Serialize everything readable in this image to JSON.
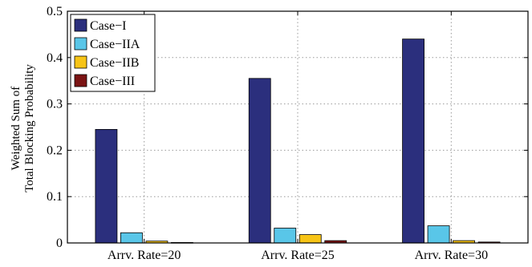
{
  "chart_data": {
    "type": "bar",
    "categories": [
      "Arrv. Rate=20",
      "Arrv. Rate=25",
      "Arrv. Rate=30"
    ],
    "series": [
      {
        "name": "Case−I",
        "color": "#2b2f7d",
        "values": [
          0.245,
          0.355,
          0.44
        ]
      },
      {
        "name": "Case−IIA",
        "color": "#59c6e8",
        "values": [
          0.022,
          0.032,
          0.037
        ]
      },
      {
        "name": "Case−IIB",
        "color": "#f7c416",
        "values": [
          0.004,
          0.018,
          0.005
        ]
      },
      {
        "name": "Case−III",
        "color": "#7b1414",
        "values": [
          0.001,
          0.005,
          0.002
        ]
      }
    ],
    "ylabel_lines": [
      "Weighted Sum of",
      "Total Blocking Probability"
    ],
    "xlabel": "",
    "ylim": [
      0,
      0.5
    ],
    "yticks": [
      0,
      0.1,
      0.2,
      0.3,
      0.4,
      0.5
    ],
    "ytick_labels": [
      "0",
      "0.1",
      "0.2",
      "0.3",
      "0.4",
      "0.5"
    ],
    "grid": true,
    "legend_position": "top-left"
  }
}
